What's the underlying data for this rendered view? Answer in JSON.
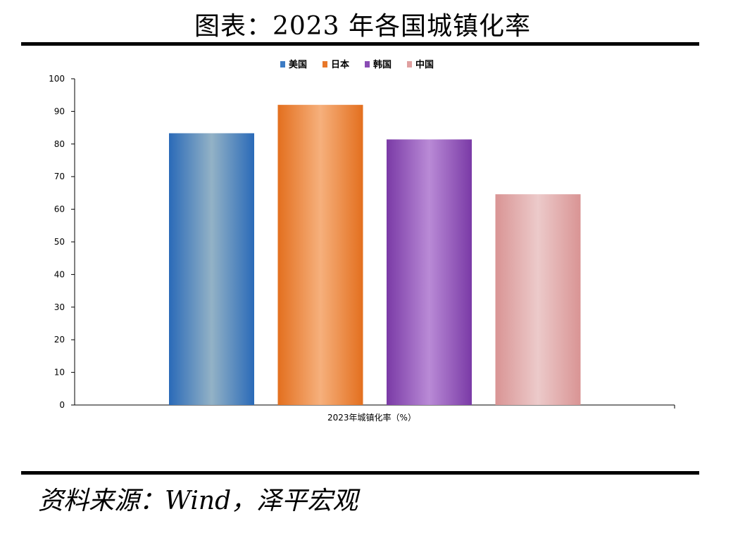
{
  "header": {
    "title": "图表：2023 年各国城镇化率"
  },
  "footer": {
    "source": "资料来源：Wind，泽平宏观"
  },
  "chart_data": {
    "type": "bar",
    "categories": [
      "2023年城镇化率（%）"
    ],
    "xlabel": "2023年城镇化率（%）",
    "ylabel": "",
    "ylim": [
      0,
      100
    ],
    "yticks": [
      0,
      10,
      20,
      30,
      40,
      50,
      60,
      70,
      80,
      90,
      100
    ],
    "grid": false,
    "legend_position": "top-center",
    "series": [
      {
        "name": "美国",
        "values": [
          83.3
        ],
        "color": "#3d7cc4",
        "color_light": "#93b2c6",
        "color_dark": "#2a6ab8"
      },
      {
        "name": "日本",
        "values": [
          92.0
        ],
        "color": "#e8782a",
        "color_light": "#f6b07c",
        "color_dark": "#e36f1e"
      },
      {
        "name": "韩国",
        "values": [
          81.4
        ],
        "color": "#8a4cb4",
        "color_light": "#b98ad6",
        "color_dark": "#7a3aa6"
      },
      {
        "name": "中国",
        "values": [
          64.6
        ],
        "color": "#e0a0a0",
        "color_light": "#eccaca",
        "color_dark": "#d99494"
      }
    ]
  }
}
